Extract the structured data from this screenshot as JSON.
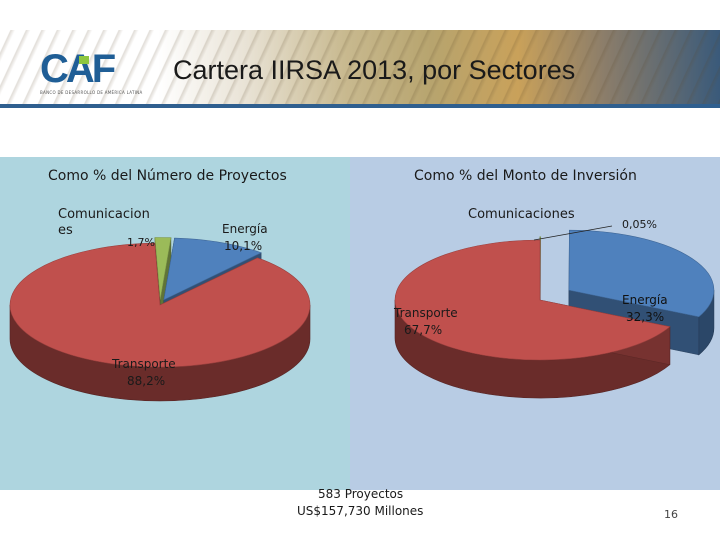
{
  "header": {
    "logo_text": "CAF",
    "logo_caption": "BANCO DE DESARROLLO DE AMÉRICA LATINA",
    "title": "Cartera IIRSA 2013, por Sectores"
  },
  "chart_data": [
    {
      "type": "pie",
      "title": "Como % del Número de Proyectos",
      "unit": "%",
      "slices": [
        {
          "name": "Comunicaciones",
          "value": 1.7,
          "label_name": "Comunicacion es",
          "label_value": "1,7%",
          "color": "#9bbb59"
        },
        {
          "name": "Energía",
          "value": 10.1,
          "label_name": "Energía",
          "label_value": "10,1%",
          "color": "#4f81bd"
        },
        {
          "name": "Transporte",
          "value": 88.2,
          "label_name": "Transporte",
          "label_value": "88,2%",
          "color": "#c0504d"
        }
      ]
    },
    {
      "type": "pie",
      "title": "Como % del Monto de Inversión",
      "unit": "%",
      "slices": [
        {
          "name": "Comunicaciones",
          "value": 0.05,
          "label_name": "Comunicaciones",
          "label_value": "0,05%",
          "color": "#9bbb59"
        },
        {
          "name": "Energía",
          "value": 32.3,
          "label_name": "Energía",
          "label_value": "32,3%",
          "color": "#4f81bd"
        },
        {
          "name": "Transporte",
          "value": 67.7,
          "label_name": "Transporte",
          "label_value": "67,7%",
          "color": "#c0504d"
        }
      ]
    }
  ],
  "footer": {
    "projects": "583 Proyectos",
    "amount": "US$157,730 Millones",
    "page_number": "16"
  }
}
